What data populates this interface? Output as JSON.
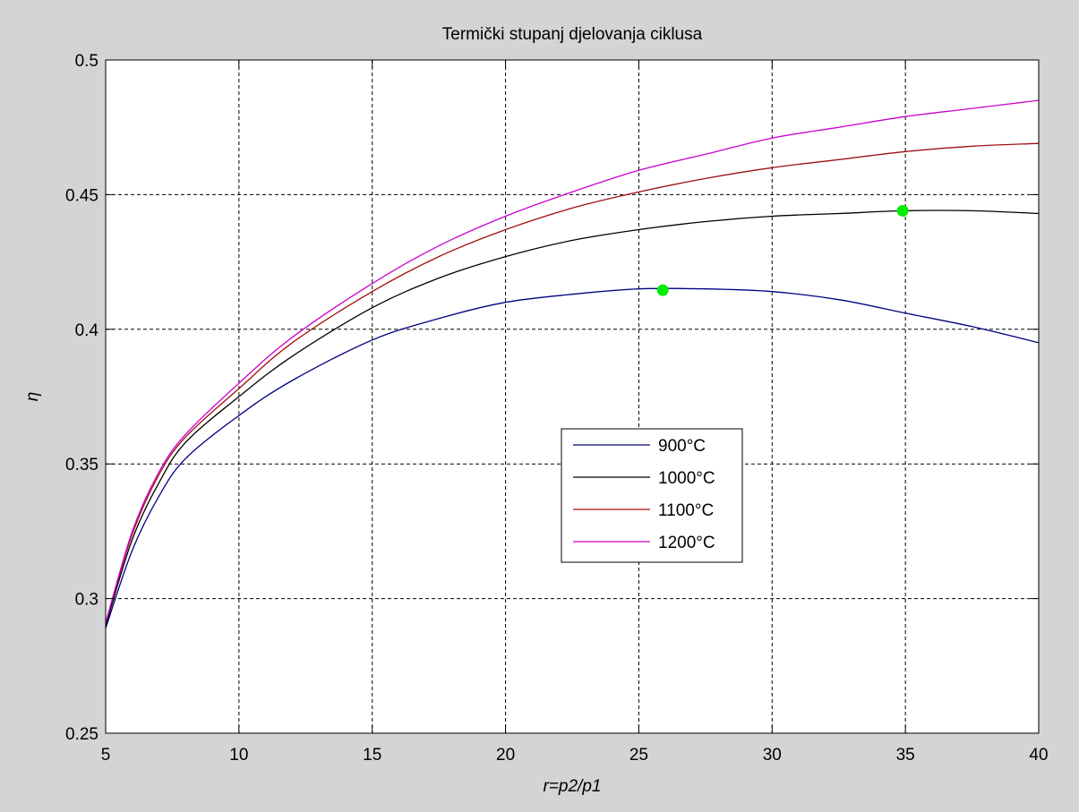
{
  "chart_data": {
    "type": "line",
    "title": "Termički stupanj djelovanja ciklusa",
    "xlabel": "r=p2/p1",
    "ylabel": "η",
    "xlim": [
      5,
      40
    ],
    "ylim": [
      0.25,
      0.5
    ],
    "xticks": [
      5,
      10,
      15,
      20,
      25,
      30,
      35,
      40
    ],
    "yticks": [
      0.25,
      0.3,
      0.35,
      0.4,
      0.45,
      0.5
    ],
    "xtick_labels": [
      "5",
      "10",
      "15",
      "20",
      "25",
      "30",
      "35",
      "40"
    ],
    "ytick_labels": [
      "0.25",
      "0.3",
      "0.35",
      "0.4",
      "0.45",
      "0.5"
    ],
    "grid": true,
    "legend_placement": "center",
    "x": [
      5,
      6,
      7,
      8,
      10,
      12,
      15,
      17.5,
      20,
      22.5,
      25,
      27.5,
      30,
      32.5,
      35,
      37.5,
      40
    ],
    "series": [
      {
        "name": "900°C",
        "color": "#00007f",
        "values": [
          0.289,
          0.318,
          0.338,
          0.352,
          0.368,
          0.381,
          0.396,
          0.404,
          0.41,
          0.413,
          0.415,
          0.415,
          0.414,
          0.411,
          0.406,
          0.401,
          0.395
        ]
      },
      {
        "name": "1000°C",
        "color": "#000000",
        "values": [
          0.29,
          0.322,
          0.343,
          0.358,
          0.375,
          0.39,
          0.408,
          0.419,
          0.427,
          0.433,
          0.437,
          0.44,
          0.442,
          0.443,
          0.444,
          0.444,
          0.443
        ]
      },
      {
        "name": "1100°C",
        "color": "#a01010",
        "values": [
          0.291,
          0.324,
          0.346,
          0.36,
          0.378,
          0.395,
          0.414,
          0.427,
          0.437,
          0.445,
          0.451,
          0.456,
          0.46,
          0.463,
          0.466,
          0.468,
          0.469
        ]
      },
      {
        "name": "1200°C",
        "color": "#cc00cc",
        "values": [
          0.291,
          0.325,
          0.347,
          0.361,
          0.38,
          0.397,
          0.417,
          0.431,
          0.442,
          0.451,
          0.459,
          0.465,
          0.471,
          0.475,
          0.479,
          0.482,
          0.485
        ]
      }
    ],
    "markers": [
      {
        "x": 25.9,
        "y": 0.4145,
        "color": "#00ee00"
      },
      {
        "x": 34.9,
        "y": 0.444,
        "color": "#00ee00"
      }
    ]
  }
}
